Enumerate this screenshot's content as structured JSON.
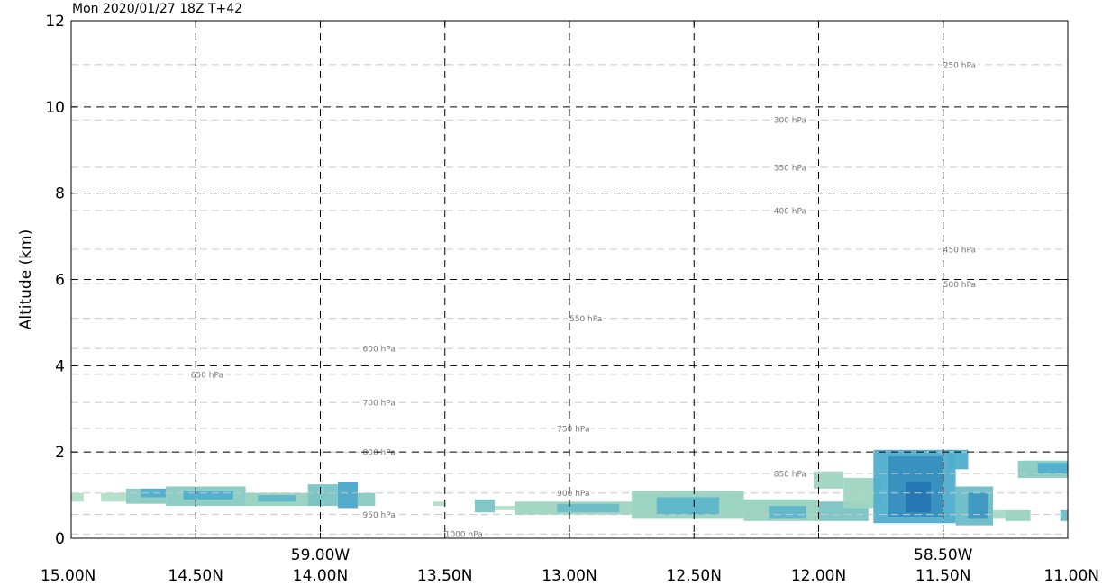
{
  "title": "Mon 2020/01/27 18Z T+42",
  "chart_data": {
    "type": "heatmap",
    "title": "Mon 2020/01/27 18Z T+42",
    "ylabel": "Altitude (km)",
    "xlabel": "",
    "xlim": [
      15.0,
      11.0
    ],
    "ylim": [
      0,
      12
    ],
    "x_ticks": [
      {
        "value": 15.0,
        "label": "15.00N"
      },
      {
        "value": 14.5,
        "label": "14.50N"
      },
      {
        "value": 14.0,
        "label": "14.00N"
      },
      {
        "value": 13.5,
        "label": "13.50N"
      },
      {
        "value": 13.0,
        "label": "13.00N"
      },
      {
        "value": 12.5,
        "label": "12.50N"
      },
      {
        "value": 12.0,
        "label": "12.00N"
      },
      {
        "value": 11.5,
        "label": "11.50N"
      },
      {
        "value": 11.0,
        "label": "11.00N"
      }
    ],
    "x_ticks_secondary": [
      {
        "value": 14.0,
        "label": "59.00W"
      },
      {
        "value": 11.5,
        "label": "58.50W"
      }
    ],
    "y_ticks": [
      0,
      2,
      4,
      6,
      8,
      10,
      12
    ],
    "grid": true,
    "pressure_levels": [
      {
        "label": "250 hPa",
        "altitude": 10.98,
        "label_x": 11.5
      },
      {
        "label": "300 hPa",
        "altitude": 9.7,
        "label_x": 12.18
      },
      {
        "label": "350 hPa",
        "altitude": 8.6,
        "label_x": 12.18
      },
      {
        "label": "400 hPa",
        "altitude": 7.6,
        "label_x": 12.18
      },
      {
        "label": "450 hPa",
        "altitude": 6.7,
        "label_x": 11.5
      },
      {
        "label": "500 hPa",
        "altitude": 5.9,
        "label_x": 11.5
      },
      {
        "label": "550 hPa",
        "altitude": 5.1,
        "label_x": 13.0
      },
      {
        "label": "600 hPa",
        "altitude": 4.4,
        "label_x": 13.83
      },
      {
        "label": "650 hPa",
        "altitude": 3.8,
        "label_x": 14.52
      },
      {
        "label": "700 hPa",
        "altitude": 3.15,
        "label_x": 13.83
      },
      {
        "label": "750 hPa",
        "altitude": 2.55,
        "label_x": 13.05
      },
      {
        "label": "800 hPa",
        "altitude": 2.0,
        "label_x": 13.83
      },
      {
        "label": "850 hPa",
        "altitude": 1.5,
        "label_x": 12.18
      },
      {
        "label": "900 hPa",
        "altitude": 1.05,
        "label_x": 13.05
      },
      {
        "label": "950 hPa",
        "altitude": 0.55,
        "label_x": 13.83
      },
      {
        "label": "1000 hPa",
        "altitude": 0.1,
        "label_x": 13.5
      }
    ],
    "colors": {
      "light": "#b9e2c2",
      "mid": "#6cc4c8",
      "dark": "#2b8fc6",
      "darkest": "#1f6fae"
    },
    "cloud_regions": [
      {
        "x0": 15.0,
        "x1": 14.95,
        "y0": 0.85,
        "y1": 1.05,
        "intensity": 0.2
      },
      {
        "x0": 14.88,
        "x1": 14.78,
        "y0": 0.85,
        "y1": 1.05,
        "intensity": 0.2
      },
      {
        "x0": 14.78,
        "x1": 14.62,
        "y0": 0.8,
        "y1": 1.15,
        "intensity": 0.4
      },
      {
        "x0": 14.72,
        "x1": 14.62,
        "y0": 0.95,
        "y1": 1.15,
        "intensity": 0.6
      },
      {
        "x0": 14.62,
        "x1": 14.3,
        "y0": 0.75,
        "y1": 1.2,
        "intensity": 0.4
      },
      {
        "x0": 14.55,
        "x1": 14.35,
        "y0": 0.9,
        "y1": 1.1,
        "intensity": 0.6
      },
      {
        "x0": 14.3,
        "x1": 14.0,
        "y0": 0.75,
        "y1": 1.05,
        "intensity": 0.35
      },
      {
        "x0": 14.25,
        "x1": 14.1,
        "y0": 0.85,
        "y1": 1.0,
        "intensity": 0.55
      },
      {
        "x0": 14.05,
        "x1": 13.93,
        "y0": 0.75,
        "y1": 1.25,
        "intensity": 0.45
      },
      {
        "x0": 13.93,
        "x1": 13.85,
        "y0": 0.7,
        "y1": 1.3,
        "intensity": 0.65
      },
      {
        "x0": 13.85,
        "x1": 13.78,
        "y0": 0.75,
        "y1": 1.05,
        "intensity": 0.4
      },
      {
        "x0": 13.55,
        "x1": 13.5,
        "y0": 0.75,
        "y1": 0.85,
        "intensity": 0.2
      },
      {
        "x0": 13.38,
        "x1": 13.3,
        "y0": 0.6,
        "y1": 0.9,
        "intensity": 0.45
      },
      {
        "x0": 13.3,
        "x1": 13.22,
        "y0": 0.65,
        "y1": 0.75,
        "intensity": 0.2
      },
      {
        "x0": 13.22,
        "x1": 12.75,
        "y0": 0.55,
        "y1": 0.85,
        "intensity": 0.3
      },
      {
        "x0": 13.05,
        "x1": 12.8,
        "y0": 0.6,
        "y1": 0.8,
        "intensity": 0.5
      },
      {
        "x0": 12.75,
        "x1": 12.3,
        "y0": 0.45,
        "y1": 1.1,
        "intensity": 0.35
      },
      {
        "x0": 12.65,
        "x1": 12.4,
        "y0": 0.55,
        "y1": 0.95,
        "intensity": 0.55
      },
      {
        "x0": 12.3,
        "x1": 12.0,
        "y0": 0.4,
        "y1": 0.9,
        "intensity": 0.35
      },
      {
        "x0": 12.2,
        "x1": 12.05,
        "y0": 0.45,
        "y1": 0.75,
        "intensity": 0.55
      },
      {
        "x0": 12.02,
        "x1": 11.9,
        "y0": 1.15,
        "y1": 1.55,
        "intensity": 0.3
      },
      {
        "x0": 12.0,
        "x1": 11.8,
        "y0": 0.4,
        "y1": 0.85,
        "intensity": 0.45
      },
      {
        "x0": 11.9,
        "x1": 11.75,
        "y0": 0.7,
        "y1": 1.4,
        "intensity": 0.3
      },
      {
        "x0": 11.78,
        "x1": 11.45,
        "y0": 0.35,
        "y1": 2.05,
        "intensity": 0.6
      },
      {
        "x0": 11.72,
        "x1": 11.5,
        "y0": 0.5,
        "y1": 1.9,
        "intensity": 0.8
      },
      {
        "x0": 11.65,
        "x1": 11.55,
        "y0": 0.6,
        "y1": 1.3,
        "intensity": 0.95
      },
      {
        "x0": 11.48,
        "x1": 11.4,
        "y0": 1.6,
        "y1": 2.05,
        "intensity": 0.6
      },
      {
        "x0": 11.45,
        "x1": 11.3,
        "y0": 0.3,
        "y1": 1.2,
        "intensity": 0.5
      },
      {
        "x0": 11.4,
        "x1": 11.32,
        "y0": 0.45,
        "y1": 1.05,
        "intensity": 0.75
      },
      {
        "x0": 11.3,
        "x1": 11.25,
        "y0": 0.45,
        "y1": 0.65,
        "intensity": 0.25
      },
      {
        "x0": 11.25,
        "x1": 11.15,
        "y0": 0.4,
        "y1": 0.65,
        "intensity": 0.35
      },
      {
        "x0": 11.2,
        "x1": 11.0,
        "y0": 1.4,
        "y1": 1.8,
        "intensity": 0.4
      },
      {
        "x0": 11.12,
        "x1": 11.0,
        "y0": 1.5,
        "y1": 1.75,
        "intensity": 0.6
      },
      {
        "x0": 11.03,
        "x1": 11.0,
        "y0": 0.4,
        "y1": 0.65,
        "intensity": 0.5
      }
    ]
  }
}
